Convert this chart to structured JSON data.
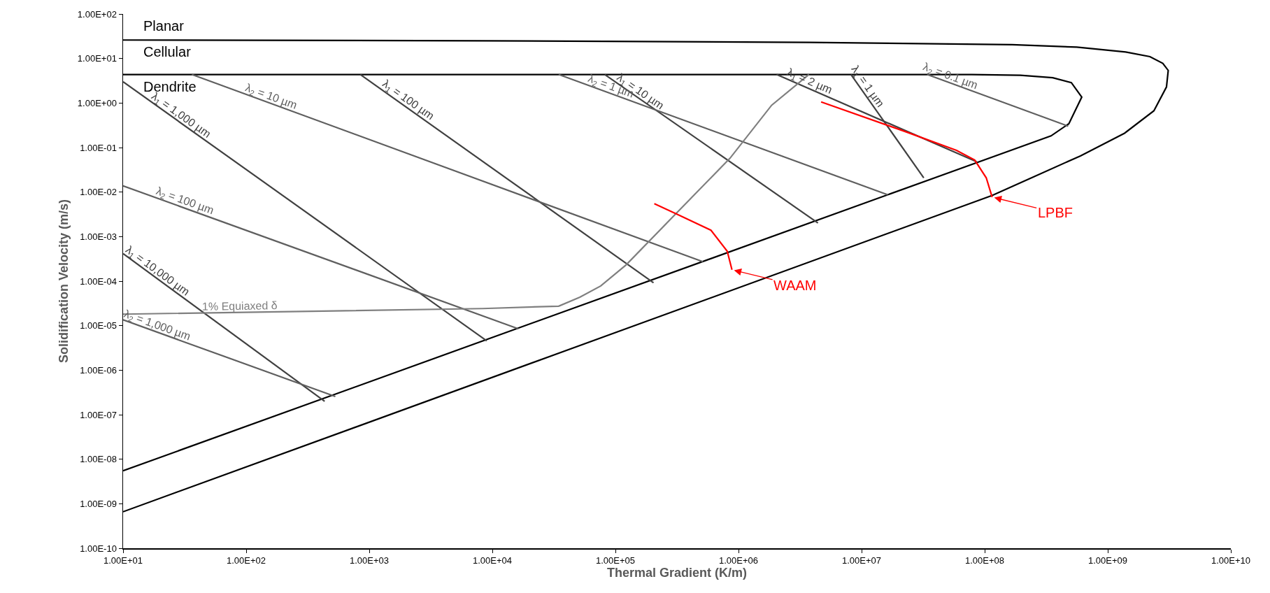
{
  "chart_data": {
    "type": "line",
    "xlabel": "Thermal Gradient (K/m)",
    "ylabel": "Solidification Velocity (m/s)",
    "log": "xy",
    "grid": false,
    "legend": false,
    "marker": "none",
    "line_style": "solid",
    "xlim": [
      10,
      10000000000
    ],
    "ylim": [
      1e-10,
      100
    ],
    "xticks": [
      {
        "value": 10,
        "label": "1.00E+01"
      },
      {
        "value": 100,
        "label": "1.00E+02"
      },
      {
        "value": 1000,
        "label": "1.00E+03"
      },
      {
        "value": 10000,
        "label": "1.00E+04"
      },
      {
        "value": 100000,
        "label": "1.00E+05"
      },
      {
        "value": 1000000,
        "label": "1.00E+06"
      },
      {
        "value": 10000000,
        "label": "1.00E+07"
      },
      {
        "value": 100000000,
        "label": "1.00E+08"
      },
      {
        "value": 1000000000,
        "label": "1.00E+09"
      },
      {
        "value": 10000000000,
        "label": "1.00E+10"
      }
    ],
    "yticks": [
      {
        "value": 1e-10,
        "label": "1.00E-10"
      },
      {
        "value": 1e-09,
        "label": "1.00E-09"
      },
      {
        "value": 1e-08,
        "label": "1.00E-08"
      },
      {
        "value": 1e-07,
        "label": "1.00E-07"
      },
      {
        "value": 1e-06,
        "label": "1.00E-06"
      },
      {
        "value": 1e-05,
        "label": "1.00E-05"
      },
      {
        "value": 0.0001,
        "label": "1.00E-04"
      },
      {
        "value": 0.001,
        "label": "1.00E-03"
      },
      {
        "value": 0.01,
        "label": "1.00E-02"
      },
      {
        "value": 0.1,
        "label": "1.00E-01"
      },
      {
        "value": 1,
        "label": "1.00E+00"
      },
      {
        "value": 10,
        "label": "1.00E+01"
      },
      {
        "value": 100,
        "label": "1.00E+02"
      }
    ],
    "series": [
      {
        "color": "#000000",
        "x": [
          10,
          8850,
          3790000,
          167000000,
          560000000,
          1400000000,
          2200000000,
          2800000000,
          3100000000,
          3000000000,
          2370000000,
          1370000000,
          600000000,
          115000000,
          10
        ],
        "values": [
          26,
          25,
          23,
          20.5,
          18,
          14,
          11,
          7.8,
          5.4,
          2.3,
          0.67,
          0.21,
          0.065,
          0.0084,
          6.6e-10
        ]
      },
      {
        "color": "#000000",
        "x": [
          10,
          78500000,
          195000000,
          357000000,
          506000000,
          615000000,
          483000000,
          346000000,
          16300000,
          10
        ],
        "values": [
          4.37,
          4.37,
          4.19,
          3.7,
          2.88,
          1.36,
          0.343,
          0.183,
          0.0087,
          5.5e-09
        ]
      },
      {
        "name": "λ$_{1}$ = 10,000 µm",
        "color": "#404040",
        "x": [
          10,
          434
        ],
        "values": [
          0.000414,
          2e-07
        ]
      },
      {
        "name": "λ$_{1}$ = 1,000 µm",
        "color": "#404040",
        "x": [
          10,
          9000
        ],
        "values": [
          3.0,
          4.56e-06
        ]
      },
      {
        "name": "λ$_{1}$ = 100 µm",
        "color": "#404040",
        "x": [
          847,
          204000
        ],
        "values": [
          4.37,
          9.2e-05
        ]
      },
      {
        "name": "λ$_{1}$ = 10 µm",
        "color": "#404040",
        "x": [
          82000,
          4420000
        ],
        "values": [
          4.37,
          0.00202
        ]
      },
      {
        "name": "λ$_{1}$ = 2 µm",
        "color": "#404040",
        "x": [
          2040000,
          86000000
        ],
        "values": [
          4.37,
          0.0482
        ]
      },
      {
        "name": "λ$_{1}$ = 1 µm",
        "color": "#404040",
        "x": [
          8200000,
          32000000
        ],
        "values": [
          4.37,
          0.0209
        ]
      },
      {
        "name": "λ$_{2}$ = 1,000 µm",
        "color": "#5f5f5f",
        "x": [
          10,
          530
        ],
        "values": [
          1.35e-05,
          2.56e-07
        ]
      },
      {
        "name": "λ$_{2}$ = 100 µm",
        "color": "#5f5f5f",
        "x": [
          10,
          16300
        ],
        "values": [
          0.0138,
          8.5e-06
        ]
      },
      {
        "name": "λ$_{2}$ = 10 µm",
        "color": "#5f5f5f",
        "x": [
          36.2,
          514000
        ],
        "values": [
          4.37,
          0.000272
        ]
      },
      {
        "name": "λ$_{2}$ = 1 µm",
        "color": "#5f5f5f",
        "x": [
          34600,
          16300000
        ],
        "values": [
          4.37,
          0.0087
        ]
      },
      {
        "name": "λ$_{2}$ = 0.1 µm",
        "color": "#5f5f5f",
        "x": [
          34100000,
          477000000
        ],
        "values": [
          4.37,
          0.303
        ]
      },
      {
        "name": "1% Equiaxed δ",
        "color": "#7f7f7f",
        "x": [
          10,
          8340,
          34600,
          51400,
          76000,
          122000,
          336000,
          850000,
          1860000,
          3730000
        ],
        "values": [
          1.81e-05,
          2.42e-05,
          2.74e-05,
          4.34e-05,
          7.8e-05,
          0.000231,
          0.00411,
          0.0569,
          0.895,
          4.37
        ]
      },
      {
        "color": "#ff0000",
        "x": [
          207000,
          316000,
          597000,
          810000,
          885000
        ],
        "values": [
          0.0055,
          0.0032,
          0.00139,
          0.000469,
          0.00018
        ]
      },
      {
        "color": "#ff0000",
        "x": [
          4690000,
          22000000,
          59000000,
          83000000,
          103000000,
          115000000
        ],
        "values": [
          1.06,
          0.235,
          0.0865,
          0.0524,
          0.0209,
          0.0077
        ]
      }
    ],
    "annotations": [
      "Planar",
      "Cellular",
      "Dendrite",
      {
        "text": "WAAM",
        "x": 885000,
        "y": 0.00018
      },
      {
        "text": "LPBF",
        "x": 115000000,
        "y": 0.0077
      }
    ]
  }
}
